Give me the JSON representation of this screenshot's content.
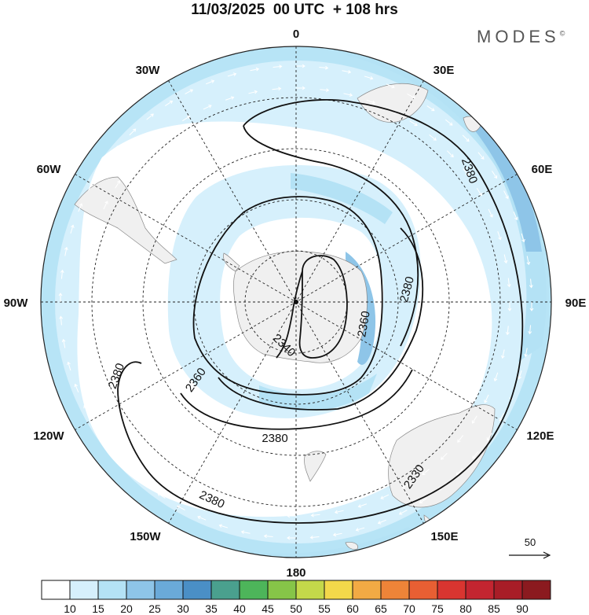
{
  "header": {
    "title": "11/03/2025  00 UTC  + 108 hrs",
    "brand": "MODES",
    "brand_mark": "©"
  },
  "map": {
    "projection": "south-polar-stereographic",
    "field": "geopotential height contours with wind speed shading and wind vectors",
    "longitude_labels": [
      "0",
      "30E",
      "60E",
      "90E",
      "120E",
      "150E",
      "180",
      "150W",
      "120W",
      "90W",
      "60W",
      "30W"
    ],
    "contour_labels": [
      "2380",
      "2380",
      "2360",
      "2340",
      "2360",
      "2380",
      "2380",
      "2380",
      "2330"
    ],
    "vector_reference": "50"
  },
  "colorbar": {
    "ticks": [
      "10",
      "15",
      "20",
      "25",
      "30",
      "35",
      "40",
      "45",
      "50",
      "55",
      "60",
      "65",
      "70",
      "75",
      "80",
      "85",
      "90"
    ],
    "colors": [
      "#ffffff",
      "#d6f0fc",
      "#b4e2f5",
      "#8ec5e8",
      "#6aaad9",
      "#4a8fc6",
      "#4aa08e",
      "#4db55a",
      "#86c548",
      "#c4d84a",
      "#f3d84a",
      "#f2aa44",
      "#ee8438",
      "#e85f33",
      "#d93530",
      "#c32530",
      "#a81d27",
      "#8b1a1f"
    ]
  }
}
